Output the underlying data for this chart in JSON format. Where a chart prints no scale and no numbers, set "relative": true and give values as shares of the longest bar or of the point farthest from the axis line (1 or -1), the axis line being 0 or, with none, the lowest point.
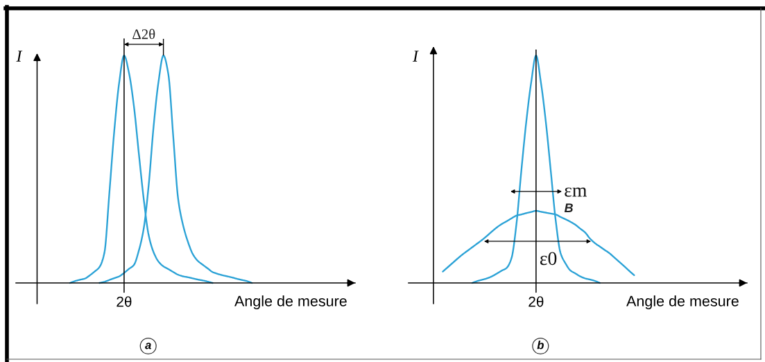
{
  "chart_data": [
    {
      "type": "line",
      "title": "a",
      "xlabel": "Angle de mesure",
      "ylabel": "I",
      "relative": true,
      "categories": [
        null,
        null,
        null,
        null,
        null,
        null,
        null,
        null,
        null,
        null,
        null,
        null,
        null,
        null,
        null,
        null,
        null,
        null,
        null,
        null,
        null,
        null,
        null,
        null,
        null,
        null,
        null,
        null,
        null,
        null,
        null,
        null,
        null,
        null,
        null,
        null,
        null,
        null,
        null,
        null,
        null,
        null,
        null,
        null,
        null,
        null,
        null,
        null,
        null,
        null,
        null,
        null,
        null,
        null,
        null,
        null,
        null,
        null,
        null,
        null,
        null,
        null,
        null,
        null,
        null,
        null,
        null,
        null,
        null,
        null
      ],
      "series": [
        {
          "color": "#2ba2d6",
          "values": [
            null,
            null,
            null,
            null,
            null,
            null,
            null,
            null,
            null,
            null,
            null,
            0,
            0.008,
            0.014,
            0.019,
            0.033,
            0.05,
            0.07,
            0.133,
            0.394,
            0.668,
            0.88,
            1,
            0.923,
            0.777,
            0.569,
            0.368,
            0.21,
            0.135,
            0.094,
            0.073,
            0.061,
            0.048,
            0.036,
            0.029,
            0.025,
            0.02,
            0.015,
            0.011,
            0.006,
            0,
            null,
            null,
            null,
            null,
            null,
            null,
            null,
            null,
            null,
            null,
            null,
            null,
            null,
            null,
            null,
            null,
            null,
            null,
            null,
            null,
            null,
            null,
            null,
            null,
            null,
            null,
            null,
            null,
            null
          ]
        },
        {
          "color": "#2ba2d6",
          "values": [
            null,
            null,
            null,
            null,
            null,
            null,
            null,
            null,
            null,
            null,
            null,
            null,
            null,
            null,
            null,
            null,
            null,
            0,
            0.005,
            0.013,
            0.021,
            0.029,
            0.044,
            0.062,
            0.079,
            0.142,
            0.24,
            0.429,
            0.687,
            0.884,
            1,
            0.918,
            0.644,
            0.369,
            0.254,
            0.18,
            0.126,
            0.097,
            0.08,
            0.064,
            0.048,
            0.04,
            0.034,
            0.029,
            0.024,
            0.018,
            0.013,
            0.008,
            0,
            null,
            null,
            null,
            null,
            null,
            null,
            null,
            null,
            null,
            null,
            null,
            null,
            null,
            null,
            null,
            null,
            null,
            null,
            null,
            null,
            null
          ]
        }
      ],
      "annotations": [
        "2θ",
        "Δ2θ"
      ]
    },
    {
      "type": "line",
      "title": "b",
      "xlabel": "Angle de mesure",
      "ylabel": "I",
      "relative": true,
      "categories": [
        null,
        null,
        null,
        null,
        null,
        null,
        null,
        null,
        null,
        null,
        null,
        null,
        null,
        null,
        null,
        null,
        null,
        null,
        null,
        null,
        null,
        null,
        null,
        null,
        null,
        null,
        null,
        null,
        null,
        null,
        null,
        null,
        null,
        null,
        null,
        null,
        null,
        null,
        null,
        null,
        null,
        null,
        null,
        null,
        null,
        null,
        null,
        null,
        null,
        null,
        null,
        null,
        null,
        null,
        null,
        null,
        null,
        null,
        null,
        null,
        null,
        null,
        null,
        null,
        null,
        null,
        null,
        null,
        null,
        null
      ],
      "series": [
        {
          "color": "#2ba2d6",
          "values": [
            null,
            null,
            null,
            null,
            null,
            null,
            null,
            null,
            null,
            null,
            null,
            null,
            null,
            0,
            0.008,
            0.014,
            0.02,
            0.029,
            0.041,
            0.054,
            0.066,
            0.109,
            0.258,
            0.493,
            0.707,
            0.88,
            1,
            0.88,
            0.707,
            0.493,
            0.276,
            0.131,
            0.086,
            0.055,
            0.042,
            0.029,
            0.02,
            0.015,
            0.009,
            0,
            null,
            null,
            null,
            null,
            null,
            null,
            null,
            null,
            null,
            null,
            null,
            null,
            null,
            null,
            null,
            null,
            null,
            null,
            null,
            null,
            null,
            null,
            null,
            null,
            null,
            null,
            null,
            null,
            null,
            null
          ]
        },
        {
          "name": "B",
          "color": "#2ba2d6",
          "values": [
            null,
            null,
            null,
            null,
            null,
            null,
            null,
            0.05,
            0.069,
            0.088,
            0.107,
            0.125,
            0.141,
            0.157,
            0.173,
            0.189,
            0.207,
            0.226,
            0.244,
            0.259,
            0.271,
            0.284,
            0.296,
            0.301,
            0.307,
            0.312,
            0.317,
            0.313,
            0.309,
            0.305,
            0.301,
            0.29,
            0.28,
            0.269,
            0.256,
            0.239,
            0.222,
            0.195,
            0.175,
            0.16,
            0.145,
            0.13,
            0.111,
            0.092,
            0.073,
            0.053,
            0.034,
            null,
            null,
            null,
            null,
            null,
            null,
            null,
            null,
            null,
            null,
            null,
            null,
            null,
            null,
            null,
            null,
            null,
            null,
            null,
            null,
            null,
            null,
            null
          ]
        }
      ],
      "annotations": [
        "2θ",
        "εm",
        "ε0"
      ]
    }
  ]
}
